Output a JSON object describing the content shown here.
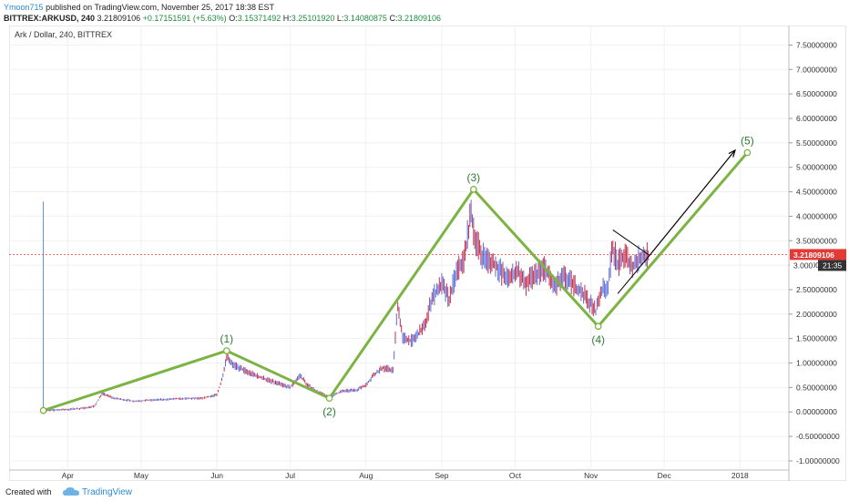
{
  "header": {
    "author": "Ymoon715",
    "published": "published on TradingView.com, November 25, 2017 18:38 EST",
    "symbol": "BITTREX:ARKUSD, 240",
    "last": "3.21809106",
    "change": "+0.17151591 (+5.63%)",
    "o_label": "O:",
    "o_val": "3.15371492",
    "h_label": "H:",
    "h_val": "3.25101920",
    "l_label": "L:",
    "l_val": "3.14080875",
    "c_label": "C:",
    "c_val": "3.21809106"
  },
  "footer": {
    "created": "Created with",
    "brand": "TradingView"
  },
  "colors": {
    "wave": "#7cb342",
    "up": "#5b6bd6",
    "down": "#c2304f",
    "price_line": "#e53935",
    "price_badge": "#e53935",
    "time_badge": "#333333"
  },
  "chart_data": {
    "type": "line",
    "title": "Ark / Dollar, 240, BITTREX",
    "x_ticks": [
      "Apr",
      "May",
      "Jun",
      "Jul",
      "Aug",
      "Sep",
      "Oct",
      "Nov",
      "Dec",
      "2018"
    ],
    "y_ticks": [
      "7.50000000",
      "7.00000000",
      "6.50000000",
      "6.00000000",
      "5.50000000",
      "5.00000000",
      "4.50000000",
      "4.00000000",
      "3.50000000",
      "3.00000000",
      "2.50000000",
      "2.00000000",
      "1.50000000",
      "1.00000000",
      "0.50000000",
      "0.00000000",
      "-0.50000000",
      "-1.00000000"
    ],
    "ylim": [
      -1.15,
      7.75
    ],
    "grid": true,
    "current_price": 3.21809106,
    "current_price_label": "3.21809106",
    "countdown_label": "21:35",
    "under_badge_label": "3.000",
    "price_series": {
      "name": "ARKUSD",
      "points": [
        [
          "2017-03-22",
          0.03
        ],
        [
          "2017-03-27",
          0.04
        ],
        [
          "2017-04-01",
          0.05
        ],
        [
          "2017-04-08",
          0.08
        ],
        [
          "2017-04-12",
          0.12
        ],
        [
          "2017-04-15",
          0.38
        ],
        [
          "2017-04-20",
          0.28
        ],
        [
          "2017-04-28",
          0.22
        ],
        [
          "2017-05-08",
          0.25
        ],
        [
          "2017-05-18",
          0.27
        ],
        [
          "2017-05-26",
          0.28
        ],
        [
          "2017-06-01",
          0.35
        ],
        [
          "2017-06-03",
          0.65
        ],
        [
          "2017-06-05",
          1.15
        ],
        [
          "2017-06-08",
          0.95
        ],
        [
          "2017-06-12",
          0.85
        ],
        [
          "2017-06-18",
          0.72
        ],
        [
          "2017-06-25",
          0.6
        ],
        [
          "2017-07-01",
          0.5
        ],
        [
          "2017-07-05",
          0.75
        ],
        [
          "2017-07-08",
          0.55
        ],
        [
          "2017-07-12",
          0.42
        ],
        [
          "2017-07-17",
          0.3
        ],
        [
          "2017-07-22",
          0.42
        ],
        [
          "2017-07-28",
          0.45
        ],
        [
          "2017-08-01",
          0.55
        ],
        [
          "2017-08-04",
          0.75
        ],
        [
          "2017-08-08",
          0.9
        ],
        [
          "2017-08-12",
          0.85
        ],
        [
          "2017-08-14",
          2.2
        ],
        [
          "2017-08-16",
          1.5
        ],
        [
          "2017-08-20",
          1.45
        ],
        [
          "2017-08-25",
          1.75
        ],
        [
          "2017-08-28",
          2.35
        ],
        [
          "2017-09-01",
          2.6
        ],
        [
          "2017-09-04",
          2.3
        ],
        [
          "2017-09-07",
          2.85
        ],
        [
          "2017-09-10",
          3.1
        ],
        [
          "2017-09-13",
          4.05
        ],
        [
          "2017-09-15",
          3.5
        ],
        [
          "2017-09-17",
          3.25
        ],
        [
          "2017-09-20",
          3.1
        ],
        [
          "2017-09-24",
          2.95
        ],
        [
          "2017-09-28",
          2.7
        ],
        [
          "2017-10-02",
          2.9
        ],
        [
          "2017-10-05",
          2.6
        ],
        [
          "2017-10-09",
          2.8
        ],
        [
          "2017-10-13",
          2.95
        ],
        [
          "2017-10-17",
          2.55
        ],
        [
          "2017-10-21",
          2.75
        ],
        [
          "2017-10-25",
          2.6
        ],
        [
          "2017-10-29",
          2.4
        ],
        [
          "2017-11-01",
          2.2
        ],
        [
          "2017-11-03",
          2.05
        ],
        [
          "2017-11-05",
          2.45
        ],
        [
          "2017-11-08",
          2.6
        ],
        [
          "2017-11-10",
          3.4
        ],
        [
          "2017-11-12",
          3.0
        ],
        [
          "2017-11-15",
          3.2
        ],
        [
          "2017-11-18",
          2.95
        ],
        [
          "2017-11-21",
          3.15
        ],
        [
          "2017-11-25",
          3.22
        ]
      ]
    },
    "annotations": {
      "wave_points": [
        {
          "label": "(1)",
          "date": "2017-06-05",
          "value": 1.25
        },
        {
          "label": "(2)",
          "date": "2017-07-17",
          "value": 0.28
        },
        {
          "label": "(3)",
          "date": "2017-09-14",
          "value": 4.55
        },
        {
          "label": "(4)",
          "date": "2017-11-04",
          "value": 1.75
        },
        {
          "label": "(5)",
          "date": "2018-01-04",
          "value": 5.3
        }
      ],
      "wave_start": {
        "date": "2017-03-22",
        "value": 0.03
      },
      "spike": {
        "date": "2017-03-22",
        "value": 4.3
      }
    }
  }
}
